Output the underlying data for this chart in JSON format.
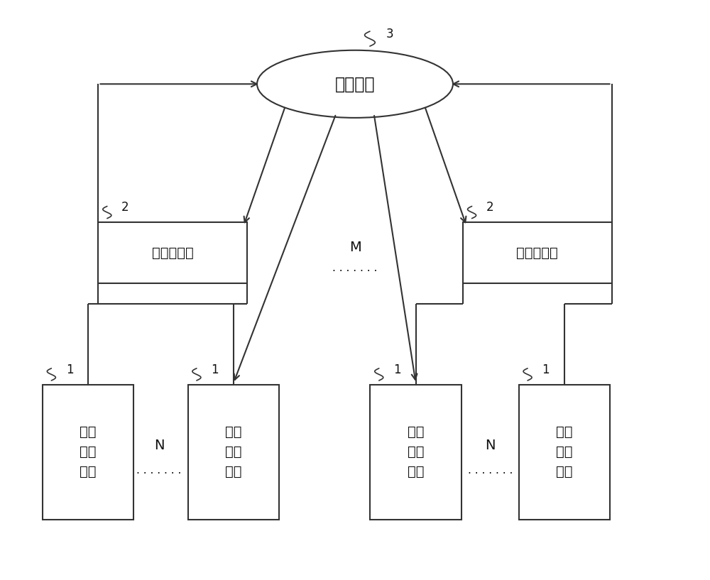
{
  "bg_color": "#ffffff",
  "line_color": "#333333",
  "text_color": "#111111",
  "platform_label": "处理平台",
  "platform_number": "3",
  "station_label": "垃圾回收站",
  "station_number": "2",
  "device_label": "垃圾\n回收\n装置",
  "device_number": "1",
  "M_label": "M",
  "N_label": "N",
  "dots": "· · · · · · ·",
  "figsize": [
    10.0,
    8.17
  ],
  "dpi": 100
}
